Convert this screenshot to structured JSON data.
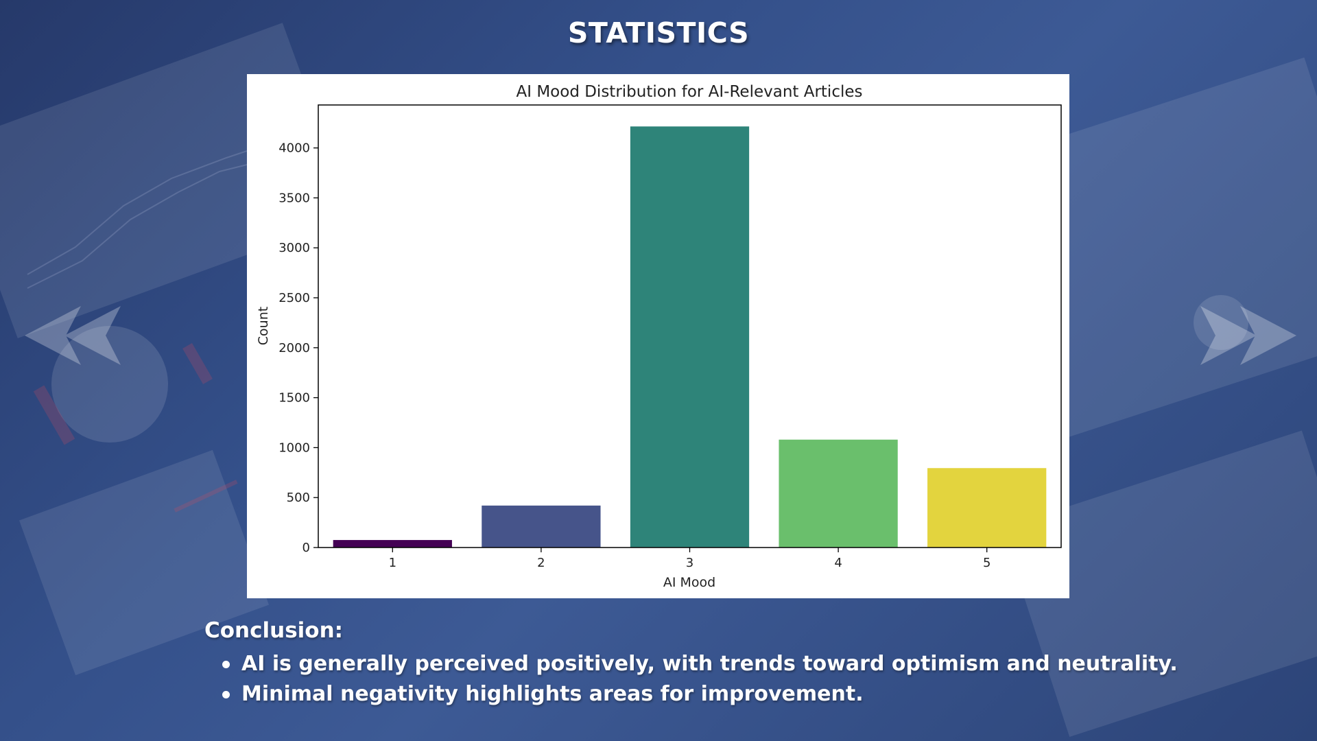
{
  "slide": {
    "title": "STATISTICS"
  },
  "chart_data": {
    "type": "bar",
    "title": "AI Mood Distribution for AI-Relevant Articles",
    "xlabel": "AI Mood",
    "ylabel": "Count",
    "categories": [
      "1",
      "2",
      "3",
      "4",
      "5"
    ],
    "values": [
      75,
      420,
      4215,
      1080,
      795
    ],
    "colors": [
      "#440154",
      "#46548a",
      "#2e8479",
      "#6abf6c",
      "#e3d43e"
    ],
    "ylim": [
      0,
      4430
    ],
    "yticks": [
      0,
      500,
      1000,
      1500,
      2000,
      2500,
      3000,
      3500,
      4000
    ],
    "grid": false,
    "legend": "none"
  },
  "conclusion": {
    "heading": "Conclusion:",
    "bullets": [
      "AI is generally perceived positively, with trends toward optimism and neutrality.",
      "Minimal negativity highlights areas for improvement."
    ]
  },
  "decor": {
    "left_arrows_icon": "double-chevron-left-icon",
    "right_arrows_icon": "double-chevron-right-icon"
  }
}
